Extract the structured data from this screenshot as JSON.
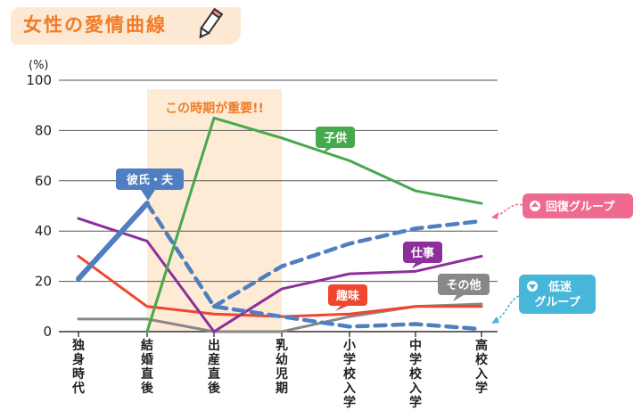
{
  "title": "女性の愛情曲線",
  "chart_data": {
    "type": "line",
    "categories": [
      "独身時代",
      "結婚直後",
      "出産直後",
      "乳幼児期",
      "小学校入学",
      "中学校入学",
      "高校入学"
    ],
    "ylim": [
      0,
      100
    ],
    "yticks": [
      0,
      20,
      40,
      60,
      80,
      100
    ],
    "yunit": "(%)",
    "grid": true,
    "highlight": {
      "from": 1,
      "to": 3,
      "label": "この時期が重要!!"
    },
    "series": [
      {
        "name": "彼氏・夫",
        "color": "#4f7fc0",
        "values": [
          21,
          51,
          null,
          null,
          null,
          null,
          null
        ],
        "style": "thick"
      },
      {
        "name": "彼氏・夫",
        "color": "#4f7fc0",
        "values": [
          null,
          51,
          10,
          6,
          2,
          3,
          1
        ],
        "style": "dashed"
      },
      {
        "name": "彼氏・夫",
        "color": "#4f7fc0",
        "values": [
          null,
          null,
          10,
          26,
          35,
          41,
          44
        ],
        "style": "dashed"
      },
      {
        "name": "子供",
        "color": "#45a94d",
        "values": [
          null,
          0,
          85,
          77,
          68,
          56,
          51
        ],
        "style": "solid"
      },
      {
        "name": "仕事",
        "color": "#8e2e9e",
        "values": [
          45,
          36,
          0,
          17,
          23,
          24,
          30
        ],
        "style": "solid"
      },
      {
        "name": "趣味",
        "color": "#f0452e",
        "values": [
          30,
          10,
          7,
          6,
          7,
          10,
          10
        ],
        "style": "solid"
      },
      {
        "name": "その他",
        "color": "#888888",
        "values": [
          5,
          5,
          0,
          0,
          6,
          10,
          11
        ],
        "style": "solid"
      }
    ],
    "callouts": [
      {
        "label": "回復グループ",
        "color": "#ee6b8f",
        "icon": "up-arrow-icon"
      },
      {
        "label": "低迷\nグループ",
        "color": "#46b6d9",
        "icon": "down-arrow-icon"
      }
    ]
  }
}
